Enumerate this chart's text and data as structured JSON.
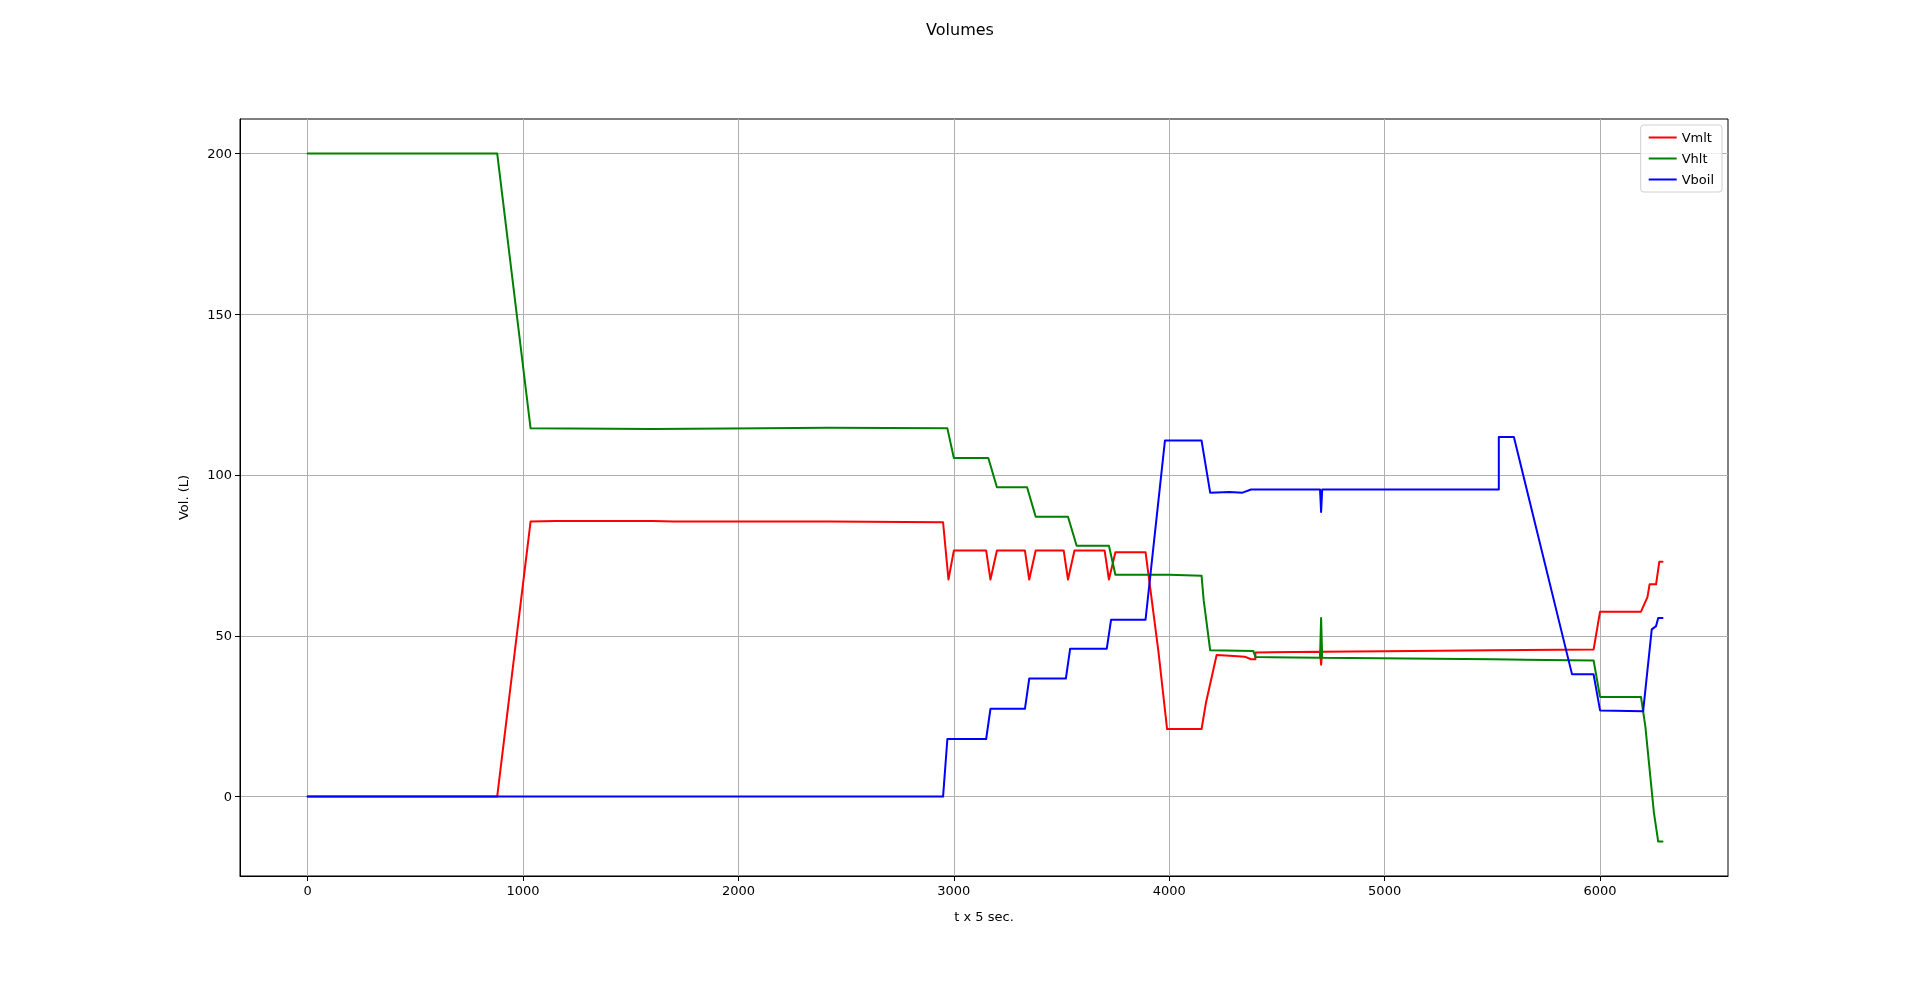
{
  "chart_data": {
    "type": "line",
    "title": "Volumes",
    "xlabel": "t x 5 sec.",
    "ylabel": "Vol. (L)",
    "xlim": [
      -314,
      6594
    ],
    "xticks": [
      0,
      1000,
      2000,
      3000,
      4000,
      5000,
      6000
    ],
    "ylim": [
      -24.7,
      210.7
    ],
    "yticks": [
      0,
      50,
      100,
      150,
      200
    ],
    "grid": true,
    "legend": "top right",
    "marker": "none",
    "line_style": "solid",
    "series": [
      {
        "name": "Vmlt",
        "color": "#ff0000",
        "x": [
          0,
          880,
          1035,
          1150,
          1600,
          1700,
          2420,
          2950,
          2975,
          3000,
          3150,
          3170,
          3200,
          3330,
          3350,
          3380,
          3510,
          3530,
          3560,
          3700,
          3720,
          3750,
          3890,
          3950,
          3990,
          4150,
          4170,
          4220,
          4300,
          4350,
          4380,
          4400,
          4400,
          4700,
          4705,
          4710,
          5000,
          5500,
          5970,
          6000,
          6190,
          6220,
          6230,
          6260,
          6275,
          6290
        ],
        "values": [
          0,
          0,
          85.5,
          85.7,
          85.7,
          85.5,
          85.5,
          85.3,
          67.5,
          76.5,
          76.5,
          67.5,
          76.5,
          76.5,
          67.5,
          76.5,
          76.5,
          67.5,
          76.5,
          76.5,
          67.5,
          76,
          76,
          45,
          21,
          21,
          29,
          44,
          43.7,
          43.5,
          42.7,
          42.7,
          44.8,
          45,
          41,
          45,
          45.2,
          45.5,
          45.7,
          57.5,
          57.5,
          62,
          66,
          66,
          73,
          73
        ]
      },
      {
        "name": "Vhlt",
        "color": "#008000",
        "x": [
          0,
          880,
          1035,
          1600,
          2420,
          2970,
          3000,
          3160,
          3200,
          3340,
          3380,
          3530,
          3570,
          3720,
          3750,
          4000,
          4150,
          4160,
          4190,
          4390,
          4400,
          4700,
          4705,
          4710,
          5500,
          5970,
          6000,
          6190,
          6210,
          6250,
          6270,
          6290
        ],
        "values": [
          200,
          200,
          114.5,
          114.3,
          114.7,
          114.5,
          105.3,
          105.3,
          96.2,
          96.2,
          87,
          87,
          78,
          78,
          69,
          69,
          68.7,
          61,
          45.5,
          45.3,
          43.4,
          43.2,
          55.5,
          43.2,
          42.7,
          42.3,
          31,
          31,
          22,
          -5,
          -14,
          -14
        ]
      },
      {
        "name": "Vboil",
        "color": "#0000ff",
        "x": [
          0,
          2950,
          2970,
          3150,
          3170,
          3330,
          3350,
          3520,
          3540,
          3710,
          3730,
          3890,
          3980,
          4150,
          4190,
          4280,
          4340,
          4380,
          4700,
          4705,
          4710,
          5530,
          5530,
          5600,
          5870,
          5970,
          6000,
          6200,
          6240,
          6260,
          6270,
          6290
        ],
        "values": [
          0,
          0,
          17.9,
          17.9,
          27.3,
          27.3,
          36.7,
          36.7,
          46,
          46,
          55,
          55,
          110.7,
          110.7,
          94.5,
          94.7,
          94.5,
          95.5,
          95.5,
          88.5,
          95.5,
          95.5,
          111.8,
          111.8,
          38,
          38,
          26.8,
          26.5,
          52,
          53,
          55.5,
          55.5
        ]
      }
    ]
  }
}
